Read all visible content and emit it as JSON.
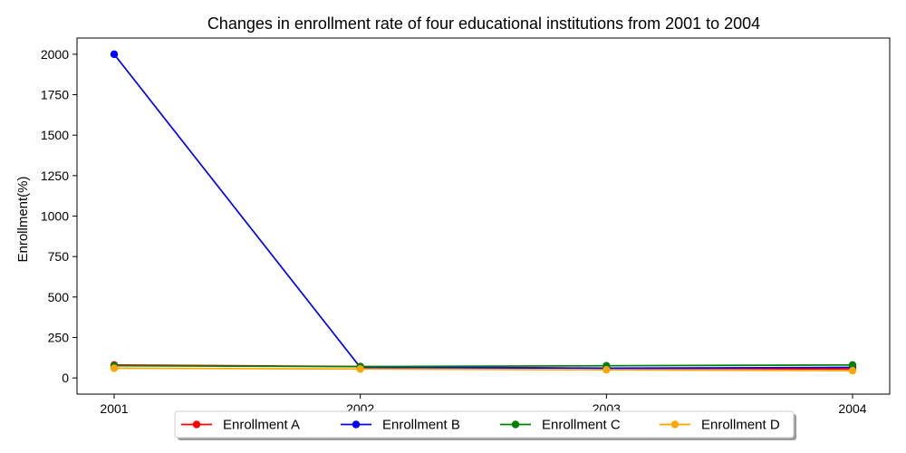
{
  "chart_data": {
    "type": "line",
    "title": "Changes in enrollment rate of four educational institutions from 2001 to 2004",
    "xlabel": "",
    "ylabel": "Enrollment(%)",
    "categories": [
      "2001",
      "2002",
      "2003",
      "2004"
    ],
    "ylim": [
      -100,
      2100
    ],
    "yticks": [
      0,
      250,
      500,
      750,
      1000,
      1250,
      1500,
      1750,
      2000
    ],
    "grid": false,
    "legend_position": "bottom-center",
    "series": [
      {
        "name": "Enrollment A",
        "color": "#ff0000",
        "values": [
          80,
          70,
          60,
          55
        ]
      },
      {
        "name": "Enrollment B",
        "color": "#0000ff",
        "values": [
          2000,
          65,
          60,
          65
        ]
      },
      {
        "name": "Enrollment C",
        "color": "#008000",
        "values": [
          75,
          70,
          75,
          80
        ]
      },
      {
        "name": "Enrollment D",
        "color": "#ffa500",
        "values": [
          60,
          55,
          50,
          45
        ]
      }
    ]
  }
}
